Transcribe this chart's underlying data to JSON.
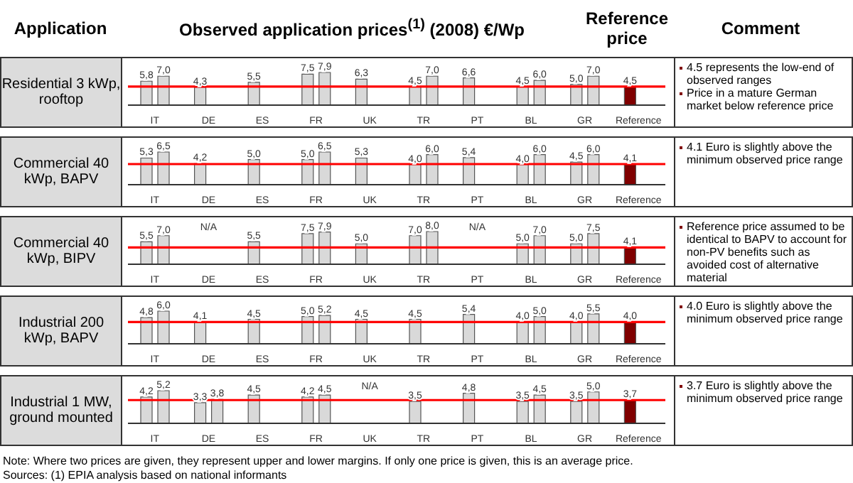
{
  "chart_data": [
    {
      "type": "other",
      "annotations": [
        "Application",
        "Observed application prices$^{(1)}$ (2008) €/Wp",
        "Reference price",
        "Comment"
      ]
    },
    {
      "type": "bar",
      "title": "Residential 3 kWp, rooftop",
      "categories": [
        "IT",
        "DE",
        "ES",
        "FR",
        "UK",
        "TR",
        "PT",
        "BL",
        "GR",
        "Reference"
      ],
      "series": [
        {
          "color": "#d9d9d9",
          "colors": [
            "#d9d9d9",
            "#d9d9d9",
            "#d9d9d9",
            "#d9d9d9",
            "#d9d9d9",
            "#d9d9d9",
            "#d9d9d9",
            "#d9d9d9",
            "#d9d9d9",
            "#800000"
          ],
          "values": [
            5.8,
            4.3,
            5.5,
            7.5,
            6.3,
            4.5,
            6.6,
            4.5,
            5.0,
            4.5
          ],
          "value_labels": [
            "5,8",
            "4,3",
            "5,5",
            "7,5",
            "6,3",
            "4,5",
            "6,6",
            "4,5",
            "5,0",
            "4,5"
          ]
        },
        {
          "color": "#d9d9d9",
          "values": [
            7.0,
            null,
            null,
            7.9,
            null,
            7.0,
            null,
            6.0,
            7.0,
            null
          ],
          "value_labels": [
            "7,0",
            null,
            null,
            "7,9",
            null,
            "7,0",
            null,
            "6,0",
            "7,0",
            null
          ]
        }
      ],
      "ref_lines": [
        {
          "axis": "y",
          "value": 4.5,
          "color": "#ff0000"
        }
      ],
      "annotations": [
        "4.5 represents the low-end of observed ranges",
        "Price in a mature German market below reference price"
      ]
    },
    {
      "type": "bar",
      "title": "Commercial 40 kWp, BAPV",
      "categories": [
        "IT",
        "DE",
        "ES",
        "FR",
        "UK",
        "TR",
        "PT",
        "BL",
        "GR",
        "Reference"
      ],
      "series": [
        {
          "color": "#d9d9d9",
          "colors": [
            "#d9d9d9",
            "#d9d9d9",
            "#d9d9d9",
            "#d9d9d9",
            "#d9d9d9",
            "#d9d9d9",
            "#d9d9d9",
            "#d9d9d9",
            "#d9d9d9",
            "#800000"
          ],
          "values": [
            5.3,
            4.2,
            5.0,
            5.0,
            5.3,
            4.0,
            5.4,
            4.0,
            4.5,
            4.1
          ],
          "value_labels": [
            "5,3",
            "4,2",
            "5,0",
            "5,0",
            "5,3",
            "4,0",
            "5,4",
            "4,0",
            "4,5",
            "4,1"
          ]
        },
        {
          "color": "#d9d9d9",
          "values": [
            6.5,
            null,
            null,
            6.5,
            null,
            6.0,
            null,
            6.0,
            6.0,
            null
          ],
          "value_labels": [
            "6,5",
            null,
            null,
            "6,5",
            null,
            "6,0",
            null,
            "6,0",
            "6,0",
            null
          ]
        }
      ],
      "ref_lines": [
        {
          "axis": "y",
          "value": 4.1,
          "color": "#ff0000"
        }
      ],
      "annotations": [
        "4.1  Euro is slightly above the minimum observed price range"
      ]
    },
    {
      "type": "bar",
      "title": "Commercial 40 kWp, BIPV",
      "categories": [
        "IT",
        "DE",
        "ES",
        "FR",
        "UK",
        "TR",
        "PT",
        "BL",
        "GR",
        "Reference"
      ],
      "series": [
        {
          "color": "#d9d9d9",
          "colors": [
            "#d9d9d9",
            "#d9d9d9",
            "#d9d9d9",
            "#d9d9d9",
            "#d9d9d9",
            "#d9d9d9",
            "#d9d9d9",
            "#d9d9d9",
            "#d9d9d9",
            "#800000"
          ],
          "values": [
            5.5,
            null,
            5.5,
            7.5,
            5.0,
            7.0,
            null,
            5.0,
            5.0,
            4.1
          ],
          "value_labels": [
            "5,5",
            "N/A",
            "5,5",
            "7,5",
            "5,0",
            "7,0",
            "N/A",
            "5,0",
            "5,0",
            "4,1"
          ]
        },
        {
          "color": "#d9d9d9",
          "values": [
            7.0,
            null,
            null,
            7.9,
            null,
            8.0,
            null,
            7.0,
            7.5,
            null
          ],
          "value_labels": [
            "7,0",
            null,
            null,
            "7,9",
            null,
            "8,0",
            null,
            "7,0",
            "7,5",
            null
          ]
        }
      ],
      "ref_lines": [
        {
          "axis": "y",
          "value": 4.1,
          "color": "#ff0000"
        }
      ],
      "annotations": [
        "Reference price assumed to be identical to BAPV to account for non-PV benefits such as avoided cost of alternative material"
      ]
    },
    {
      "type": "bar",
      "title": "Industrial 200 kWp, BAPV",
      "categories": [
        "IT",
        "DE",
        "ES",
        "FR",
        "UK",
        "TR",
        "PT",
        "BL",
        "GR",
        "Reference"
      ],
      "series": [
        {
          "color": "#d9d9d9",
          "colors": [
            "#d9d9d9",
            "#d9d9d9",
            "#d9d9d9",
            "#d9d9d9",
            "#d9d9d9",
            "#d9d9d9",
            "#d9d9d9",
            "#d9d9d9",
            "#d9d9d9",
            "#800000"
          ],
          "values": [
            4.8,
            4.1,
            4.5,
            5.0,
            4.5,
            4.5,
            5.4,
            4.0,
            4.0,
            4.0
          ],
          "value_labels": [
            "4,8",
            "4,1",
            "4,5",
            "5,0",
            "4,5",
            "4,5",
            "5,4",
            "4,0",
            "4,0",
            "4,0"
          ]
        },
        {
          "color": "#d9d9d9",
          "values": [
            6.0,
            null,
            null,
            5.2,
            null,
            null,
            null,
            5.0,
            5.5,
            null
          ],
          "value_labels": [
            "6,0",
            null,
            null,
            "5,2",
            null,
            null,
            null,
            "5,0",
            "5,5",
            null
          ]
        }
      ],
      "ref_lines": [
        {
          "axis": "y",
          "value": 4.0,
          "color": "#ff0000"
        }
      ],
      "annotations": [
        "4.0 Euro is slightly above the minimum observed price range"
      ]
    },
    {
      "type": "bar",
      "title": "Industrial 1 MW, ground mounted",
      "categories": [
        "IT",
        "DE",
        "ES",
        "FR",
        "UK",
        "TR",
        "PT",
        "BL",
        "GR",
        "Reference"
      ],
      "series": [
        {
          "color": "#d9d9d9",
          "colors": [
            "#d9d9d9",
            "#d9d9d9",
            "#d9d9d9",
            "#d9d9d9",
            "#d9d9d9",
            "#d9d9d9",
            "#d9d9d9",
            "#d9d9d9",
            "#d9d9d9",
            "#800000"
          ],
          "values": [
            4.2,
            3.3,
            4.5,
            4.2,
            null,
            3.5,
            4.8,
            3.5,
            3.5,
            3.7
          ],
          "value_labels": [
            "4,2",
            "3,3",
            "4,5",
            "4,2",
            "N/A",
            "3,5",
            "4,8",
            "3,5",
            "3,5",
            "3,7"
          ]
        },
        {
          "color": "#d9d9d9",
          "values": [
            5.2,
            3.8,
            null,
            4.5,
            null,
            null,
            null,
            4.5,
            5.0,
            null
          ],
          "value_labels": [
            "5,2",
            "3,8",
            null,
            "4,5",
            null,
            null,
            null,
            "4,5",
            "5,0",
            null
          ]
        }
      ],
      "ref_lines": [
        {
          "axis": "y",
          "value": 3.7,
          "color": "#ff0000"
        }
      ],
      "annotations": [
        "3.7 Euro is slightly above the minimum observed price range"
      ]
    },
    {
      "type": "other",
      "annotations": [
        "Note: Where two prices are given, they represent upper and lower margins. If only one price is given, this is an average price.",
        "Sources:  (1) EPIA analysis based on national informants"
      ]
    }
  ]
}
